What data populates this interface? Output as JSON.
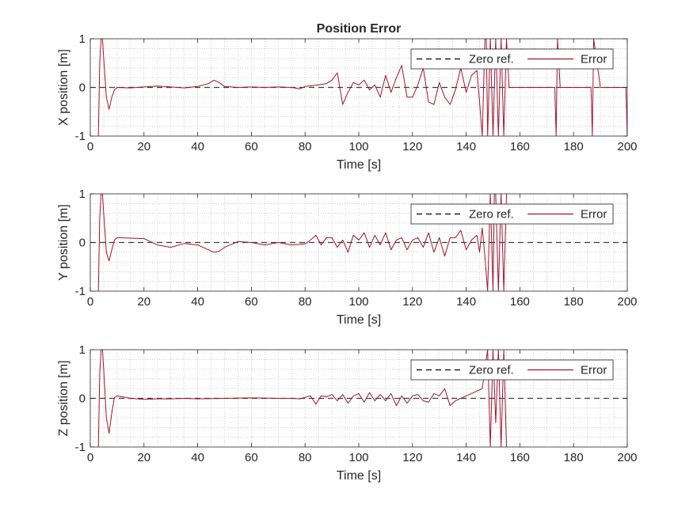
{
  "figure": {
    "title": "Position Error"
  },
  "legend": {
    "zero_label": "Zero ref.",
    "error_label": "Error"
  },
  "colors": {
    "error": "#A2142F",
    "zero": "#000000",
    "grid": "#b0b0b0",
    "axis": "#262626"
  },
  "chart_data": [
    {
      "type": "line",
      "title": "Position Error",
      "xlabel": "Time [s]",
      "ylabel": "X position [m]",
      "xlim": [
        0,
        200
      ],
      "ylim": [
        -1,
        1
      ],
      "xticks": [
        0,
        20,
        40,
        60,
        80,
        100,
        120,
        140,
        160,
        180,
        200
      ],
      "yticks": [
        -1,
        0,
        1
      ],
      "grid": "on (minor dotted)",
      "legend_position": "top-right",
      "series": [
        {
          "name": "Zero ref.",
          "style": "dashed",
          "x": [
            0,
            200
          ],
          "y": [
            0,
            0
          ]
        },
        {
          "name": "Error",
          "style": "solid",
          "x": [
            3,
            3.5,
            4,
            4.5,
            5,
            6,
            7,
            8,
            9,
            10,
            15,
            20,
            25,
            30,
            35,
            40,
            44,
            46,
            48,
            50,
            55,
            60,
            65,
            70,
            75,
            78,
            80,
            85,
            88,
            90,
            92,
            94,
            96,
            98,
            100,
            102,
            104,
            106,
            108,
            110,
            112,
            114,
            116,
            118,
            120,
            122,
            124,
            126,
            128,
            130,
            132,
            134,
            136,
            138,
            140,
            142,
            144,
            145,
            146,
            147,
            147.5,
            148,
            149,
            150,
            151,
            152,
            153,
            154,
            155,
            156,
            160,
            165,
            170,
            173,
            173.5,
            174,
            175,
            180,
            185,
            186.5,
            187,
            187.5,
            190,
            199.5,
            200
          ],
          "y": [
            -1,
            0.5,
            1,
            1,
            0.6,
            -0.2,
            -0.45,
            -0.2,
            -0.05,
            0,
            -0.01,
            0.01,
            0.03,
            0.01,
            -0.01,
            0.02,
            0.08,
            0.15,
            0.1,
            0.02,
            0,
            0.01,
            0,
            0.01,
            0,
            -0.03,
            0.02,
            0.05,
            0.08,
            0.15,
            0.3,
            -0.35,
            -0.1,
            0.1,
            0.05,
            0.15,
            -0.05,
            0.05,
            -0.2,
            0.25,
            -0.1,
            0.2,
            0.45,
            -0.2,
            -0.2,
            0.05,
            0.4,
            -0.3,
            -0.35,
            0.1,
            -0.2,
            -0.35,
            -0.05,
            0.4,
            -0.1,
            0.25,
            0.35,
            -0.3,
            -1,
            1,
            1,
            -1,
            1,
            -1,
            1,
            -1,
            1,
            -1,
            1,
            0,
            0,
            0,
            0,
            0,
            -1,
            1,
            0,
            0,
            0,
            0,
            -1,
            1,
            0,
            0,
            -1
          ]
        }
      ]
    },
    {
      "type": "line",
      "xlabel": "Time [s]",
      "ylabel": "Y position [m]",
      "xlim": [
        0,
        200
      ],
      "ylim": [
        -1,
        1
      ],
      "xticks": [
        0,
        20,
        40,
        60,
        80,
        100,
        120,
        140,
        160,
        180,
        200
      ],
      "yticks": [
        -1,
        0,
        1
      ],
      "grid": "on (minor dotted)",
      "legend_position": "top-right",
      "series": [
        {
          "name": "Zero ref.",
          "style": "dashed",
          "x": [
            0,
            200
          ],
          "y": [
            0,
            0
          ]
        },
        {
          "name": "Error",
          "style": "solid",
          "x": [
            3,
            3.5,
            4,
            4.5,
            5,
            6,
            7,
            8,
            9,
            10,
            15,
            20,
            25,
            30,
            35,
            40,
            44,
            46,
            48,
            50,
            55,
            60,
            65,
            70,
            75,
            80,
            82,
            84,
            86,
            88,
            90,
            92,
            94,
            96,
            98,
            100,
            102,
            104,
            106,
            108,
            110,
            112,
            114,
            116,
            118,
            120,
            122,
            124,
            126,
            128,
            130,
            132,
            134,
            136,
            138,
            140,
            142,
            144,
            145,
            146,
            147,
            148,
            149,
            150,
            150.5,
            151,
            152,
            153,
            154,
            155
          ],
          "y": [
            -1,
            0.5,
            1,
            1,
            0.6,
            -0.2,
            -0.38,
            -0.15,
            0.05,
            0.1,
            0.09,
            0.08,
            -0.05,
            -0.1,
            -0.02,
            -0.05,
            -0.15,
            -0.2,
            -0.18,
            -0.1,
            0.02,
            0,
            -0.05,
            0,
            -0.05,
            -0.03,
            0.05,
            0.15,
            -0.05,
            0.1,
            0.1,
            -0.1,
            0.05,
            -0.2,
            0.15,
            0.05,
            0.2,
            -0.1,
            0.15,
            -0.05,
            0.2,
            -0.15,
            0.05,
            0.1,
            -0.15,
            0.05,
            0.1,
            -0.1,
            0.2,
            -0.2,
            0.1,
            -0.28,
            0.1,
            0.1,
            0.25,
            -0.15,
            0.05,
            0.15,
            -0.2,
            0.3,
            -0.3,
            -1,
            1,
            -1,
            1,
            1,
            -1,
            1,
            -1,
            1
          ]
        }
      ]
    },
    {
      "type": "line",
      "xlabel": "Time [s]",
      "ylabel": "Z position [m]",
      "xlim": [
        0,
        200
      ],
      "ylim": [
        -1,
        1
      ],
      "xticks": [
        0,
        20,
        40,
        60,
        80,
        100,
        120,
        140,
        160,
        180,
        200
      ],
      "yticks": [
        -1,
        0,
        1
      ],
      "grid": "on (minor dotted)",
      "legend_position": "top-right",
      "series": [
        {
          "name": "Zero ref.",
          "style": "dashed",
          "x": [
            0,
            200
          ],
          "y": [
            0,
            0
          ]
        },
        {
          "name": "Error",
          "style": "solid",
          "x": [
            3,
            3.5,
            4,
            4.5,
            5,
            6,
            7,
            8,
            9,
            10,
            15,
            20,
            25,
            30,
            35,
            40,
            50,
            60,
            70,
            75,
            78,
            80,
            82,
            84,
            86,
            88,
            90,
            92,
            94,
            96,
            98,
            100,
            102,
            104,
            106,
            108,
            110,
            112,
            114,
            116,
            118,
            120,
            122,
            124,
            126,
            128,
            130,
            132,
            134,
            136,
            138,
            140,
            142,
            144,
            146,
            147,
            148,
            149,
            150,
            151,
            152,
            153,
            154,
            155
          ],
          "y": [
            -1,
            0.5,
            1,
            1,
            0.6,
            -0.4,
            -0.72,
            -0.3,
            0.02,
            0.05,
            0,
            -0.02,
            -0.01,
            -0.01,
            0,
            -0.01,
            0,
            0.01,
            0,
            0,
            -0.01,
            0.02,
            0.05,
            -0.12,
            0.05,
            0.03,
            0.08,
            -0.05,
            0.08,
            -0.1,
            0.05,
            0.1,
            -0.08,
            0.12,
            -0.05,
            0.08,
            -0.05,
            0.1,
            -0.15,
            0.05,
            -0.1,
            0.05,
            0.08,
            -0.05,
            -0.08,
            0.1,
            0.05,
            0.2,
            -0.15,
            -0.05,
            0,
            0.05,
            0.1,
            0.15,
            0.2,
            0.6,
            1,
            -1,
            1,
            -0.5,
            1,
            -1,
            1,
            -1
          ]
        }
      ]
    }
  ]
}
